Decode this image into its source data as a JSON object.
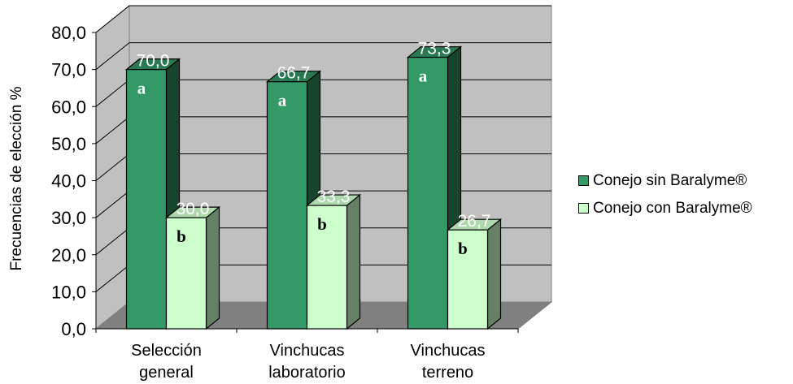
{
  "chart_data": {
    "type": "bar",
    "title": "",
    "xlabel": "",
    "ylabel": "Frecuencias de elección %",
    "ylim": [
      0,
      80
    ],
    "yticks": [
      "0,0",
      "10,0",
      "20,0",
      "30,0",
      "40,0",
      "50,0",
      "60,0",
      "70,0",
      "80,0"
    ],
    "categories": [
      [
        "Selección",
        "general"
      ],
      [
        "Vinchucas",
        "laboratorio"
      ],
      [
        "Vinchucas",
        "terreno"
      ]
    ],
    "series": [
      {
        "name": "Conejo sin Baralyme®",
        "color": "#339966",
        "values": [
          70.0,
          66.7,
          73.3
        ],
        "value_labels": [
          "70,0",
          "66,7",
          "73,3"
        ],
        "letters": [
          "a",
          "a",
          "a"
        ]
      },
      {
        "name": "Conejo con Baralyme®",
        "color": "#ccffcc",
        "values": [
          30.0,
          33.3,
          26.7
        ],
        "value_labels": [
          "30,0",
          "33,3",
          "26,7"
        ],
        "letters": [
          "b",
          "b",
          "b"
        ]
      }
    ],
    "grid": true,
    "style": "3d",
    "legend_position": "right"
  }
}
